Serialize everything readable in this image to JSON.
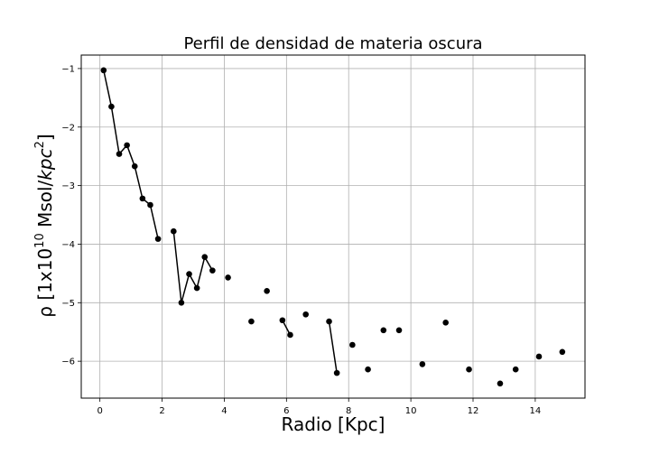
{
  "chart_data": {
    "type": "scatter",
    "title": "Perfil de densidad de materia oscura",
    "xlabel": "Radio [Kpc]",
    "ylabel_prefix": "ρ [1x10",
    "ylabel_exp": "10",
    "ylabel_mid": " Msol/",
    "ylabel_unit": "kpc",
    "ylabel_unit_exp": "2",
    "ylabel_close": "]",
    "xlim": [
      -0.6,
      15.6
    ],
    "ylim": [
      -6.63,
      -0.77
    ],
    "grid": true,
    "x_ticks": [
      {
        "value": 0,
        "label": "0"
      },
      {
        "value": 2,
        "label": "2"
      },
      {
        "value": 4,
        "label": "4"
      },
      {
        "value": 6,
        "label": "6"
      },
      {
        "value": 8,
        "label": "8"
      },
      {
        "value": 10,
        "label": "10"
      },
      {
        "value": 12,
        "label": "12"
      },
      {
        "value": 14,
        "label": "14"
      }
    ],
    "y_ticks": [
      {
        "value": -1,
        "label": "−1"
      },
      {
        "value": -2,
        "label": "−2"
      },
      {
        "value": -3,
        "label": "−3"
      },
      {
        "value": -4,
        "label": "−4"
      },
      {
        "value": -5,
        "label": "−5"
      },
      {
        "value": -6,
        "label": "−6"
      }
    ],
    "segments": [
      [
        [
          0.12,
          -1.03
        ],
        [
          0.37,
          -1.65
        ],
        [
          0.62,
          -2.46
        ],
        [
          0.87,
          -2.31
        ],
        [
          1.12,
          -2.67
        ],
        [
          1.37,
          -3.22
        ],
        [
          1.62,
          -3.33
        ],
        [
          1.87,
          -3.91
        ]
      ],
      [
        [
          2.37,
          -3.78
        ],
        [
          2.62,
          -5.0
        ],
        [
          2.87,
          -4.51
        ],
        [
          3.12,
          -4.75
        ],
        [
          3.37,
          -4.22
        ],
        [
          3.62,
          -4.45
        ]
      ],
      [
        [
          4.12,
          -4.57
        ]
      ],
      [
        [
          4.87,
          -5.32
        ]
      ],
      [
        [
          5.37,
          -4.8
        ]
      ],
      [
        [
          5.87,
          -5.3
        ],
        [
          6.12,
          -5.55
        ]
      ],
      [
        [
          6.62,
          -5.2
        ]
      ],
      [
        [
          7.37,
          -5.32
        ],
        [
          7.62,
          -6.2
        ]
      ],
      [
        [
          8.12,
          -5.72
        ]
      ],
      [
        [
          8.62,
          -6.14
        ]
      ],
      [
        [
          9.12,
          -5.47
        ]
      ],
      [
        [
          9.62,
          -5.47
        ]
      ],
      [
        [
          10.37,
          -6.05
        ]
      ],
      [
        [
          11.12,
          -5.34
        ]
      ],
      [
        [
          11.87,
          -6.14
        ]
      ],
      [
        [
          12.87,
          -6.38
        ]
      ],
      [
        [
          13.37,
          -6.14
        ]
      ],
      [
        [
          14.12,
          -5.92
        ]
      ],
      [
        [
          14.87,
          -5.84
        ]
      ]
    ],
    "color": "#000000"
  }
}
